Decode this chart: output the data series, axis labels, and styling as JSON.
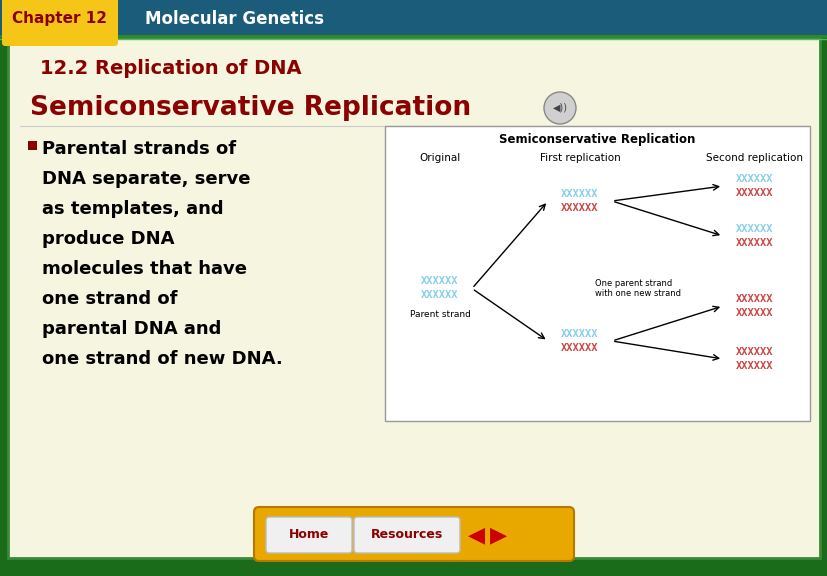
{
  "bg_outer": "#1a6b1a",
  "bg_header": "#1a5c7a",
  "bg_inner": "#f5f5e0",
  "chapter_tab_color": "#f5c518",
  "chapter_tab_text": "Chapter 12",
  "header_text": "Molecular Genetics",
  "section_title": "12.2 Replication of DNA",
  "section_title_color": "#8b0000",
  "slide_title": "Semiconservative Replication",
  "slide_title_color": "#8b0000",
  "bullet_text_lines": [
    "■ Parental strands of",
    "  DNA separate, serve",
    "  as templates, and",
    "  produce DNA",
    "  molecules that have",
    "  one strand of",
    "  parental DNA and",
    "  one strand of new DNA."
  ],
  "bullet_color": "#8b0000",
  "text_color": "#000000",
  "diagram_title": "Semiconservative Replication",
  "diagram_col1": "Original",
  "diagram_col2": "First replication",
  "diagram_col3": "Second replication",
  "diagram_bg": "#ffffff",
  "parent_strand_color": "#87ceeb",
  "new_strand_color": "#cc4444",
  "parent_label": "Parent strand",
  "one_parent_label": "One parent strand\nwith one new strand",
  "footer_bar_color": "#e8a800",
  "home_btn_color": "#f0f0f0",
  "home_btn_text": "Home",
  "home_btn_text_color": "#8b0000",
  "resources_btn_color": "#f0f0f0",
  "resources_btn_text": "Resources",
  "resources_btn_text_color": "#8b0000",
  "nav_arrow_color": "#cc0000",
  "fig_width": 8.28,
  "fig_height": 5.76,
  "dpi": 100
}
